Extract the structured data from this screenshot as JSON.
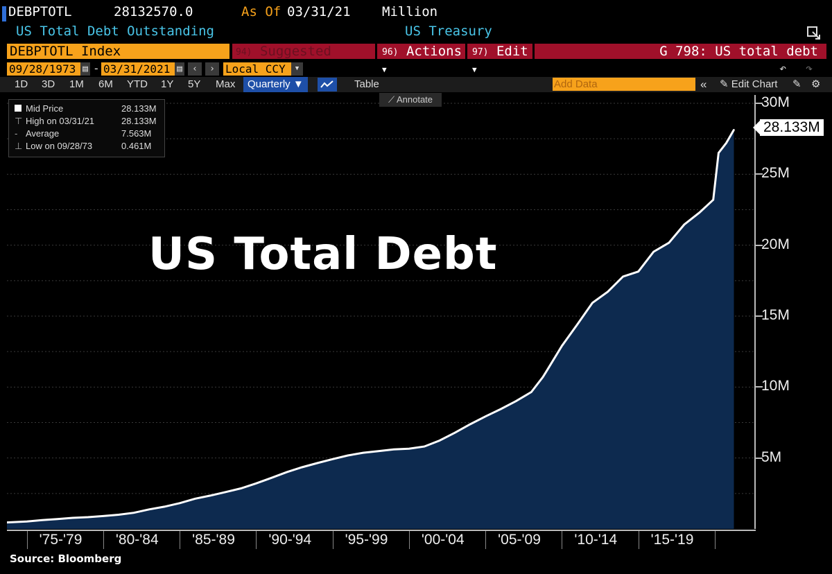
{
  "header": {
    "ticker": "DEBPTOTL",
    "value": "28132570.0",
    "as_of_label": "As Of",
    "as_of_date": "03/31/21",
    "unit": "Million",
    "description": "US Total Debt Outstanding",
    "source_name": "US Treasury"
  },
  "toolbar": {
    "security": "DEBPTOTL Index",
    "suggested_num": "94)",
    "suggested_label": "Suggested Charts",
    "actions_num": "96)",
    "actions_label": "Actions",
    "edit_num": "97)",
    "edit_label": "Edit",
    "function_label": "G 798: US total debt"
  },
  "dates": {
    "start": "09/28/1973",
    "dash": "-",
    "end": "03/31/2021",
    "currency": "Local CCY"
  },
  "periods": [
    "1D",
    "3D",
    "1M",
    "6M",
    "YTD",
    "1Y",
    "5Y",
    "Max"
  ],
  "frequency": "Quarterly",
  "table_label": "Table",
  "add_data_placeholder": "Add Data",
  "edit_chart_label": "Edit Chart",
  "annotate_label": "Annotate",
  "legend": [
    {
      "label": "Mid Price",
      "value": "28.133M"
    },
    {
      "label": "High on 03/31/21",
      "value": "28.133M"
    },
    {
      "label": "Average",
      "value": "7.563M"
    },
    {
      "label": "Low on 09/28/73",
      "value": "0.461M"
    }
  ],
  "overlay_title": "US Total Debt",
  "last_value_label": "28.133M",
  "source_text": "Source: Bloomberg",
  "colors": {
    "orange": "#f7a21b",
    "red_bar": "#a0102a",
    "area_fill": "#0d2a4f",
    "line": "#ffffff",
    "header_cyan": "#49c5e8",
    "as_of_orange": "#f7a21b"
  },
  "chart_data": {
    "type": "area",
    "x": [
      1973.7,
      1975,
      1976,
      1977,
      1978,
      1979,
      1980,
      1981,
      1982,
      1983,
      1984,
      1985,
      1986,
      1987,
      1988,
      1989,
      1990,
      1991,
      1992,
      1993,
      1994,
      1995,
      1996,
      1997,
      1998,
      1999,
      2000,
      2001,
      2002,
      2003,
      2004,
      2005,
      2006,
      2007,
      2008,
      2008.75,
      2009,
      2010,
      2011,
      2012,
      2013,
      2014,
      2015,
      2016,
      2017,
      2018,
      2019,
      2019.9,
      2020.25,
      2020.75,
      2021.25
    ],
    "series": [
      {
        "values": [
          0.46,
          0.53,
          0.62,
          0.7,
          0.78,
          0.83,
          0.91,
          1.0,
          1.14,
          1.38,
          1.57,
          1.82,
          2.13,
          2.35,
          2.6,
          2.86,
          3.21,
          3.6,
          4.0,
          4.35,
          4.64,
          4.92,
          5.18,
          5.37,
          5.48,
          5.61,
          5.66,
          5.81,
          6.23,
          6.78,
          7.38,
          7.93,
          8.45,
          9.01,
          9.65,
          10.7,
          11.13,
          12.9,
          14.4,
          15.94,
          16.72,
          17.79,
          18.14,
          19.54,
          20.17,
          21.45,
          22.3,
          23.2,
          26.5,
          27.2,
          28.133
        ]
      }
    ],
    "ylim": [
      0,
      30
    ],
    "y_tick_labels": [
      "5M",
      "10M",
      "15M",
      "20M",
      "25M",
      "30M"
    ],
    "x_tick_labels": [
      "'75-'79",
      "'80-'84",
      "'85-'89",
      "'90-'94",
      "'95-'99",
      "'00-'04",
      "'05-'09",
      "'10-'14",
      "'15-'19"
    ],
    "grid": true,
    "legend_position": "top-left"
  }
}
